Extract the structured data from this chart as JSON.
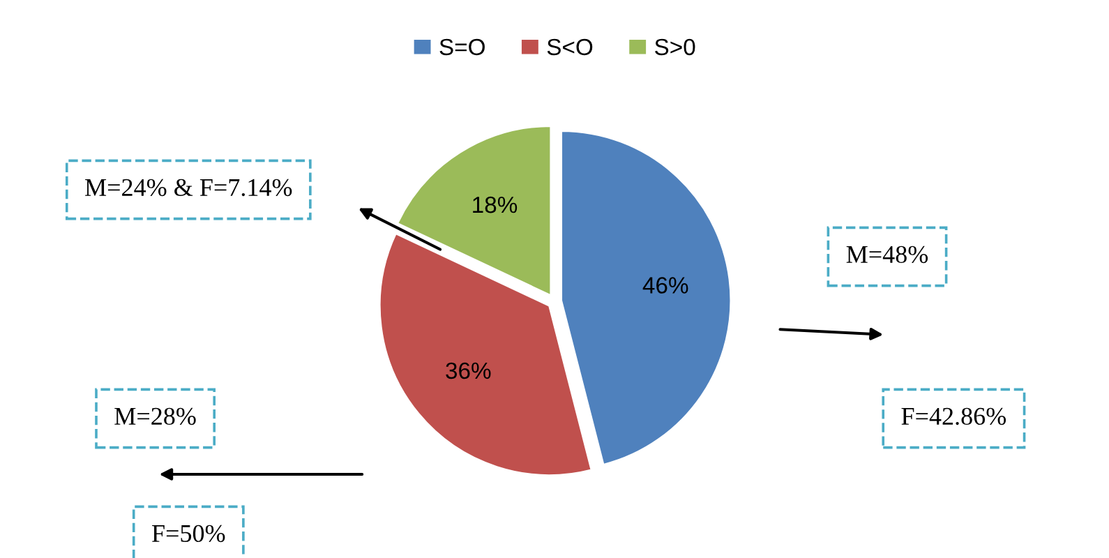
{
  "chart_data": {
    "type": "pie",
    "categories": [
      "S=O",
      "S<O",
      "S>0"
    ],
    "values": [
      46,
      36,
      18
    ],
    "colors": [
      "#4f81bd",
      "#c0504d",
      "#9bbb59"
    ],
    "value_labels": [
      "46%",
      "36%",
      "18%"
    ],
    "legend": "top",
    "annotations": [
      "M=48%",
      "F=42.86%",
      "M=24% & F=7.14%",
      "M=28%",
      "F=50%"
    ]
  }
}
